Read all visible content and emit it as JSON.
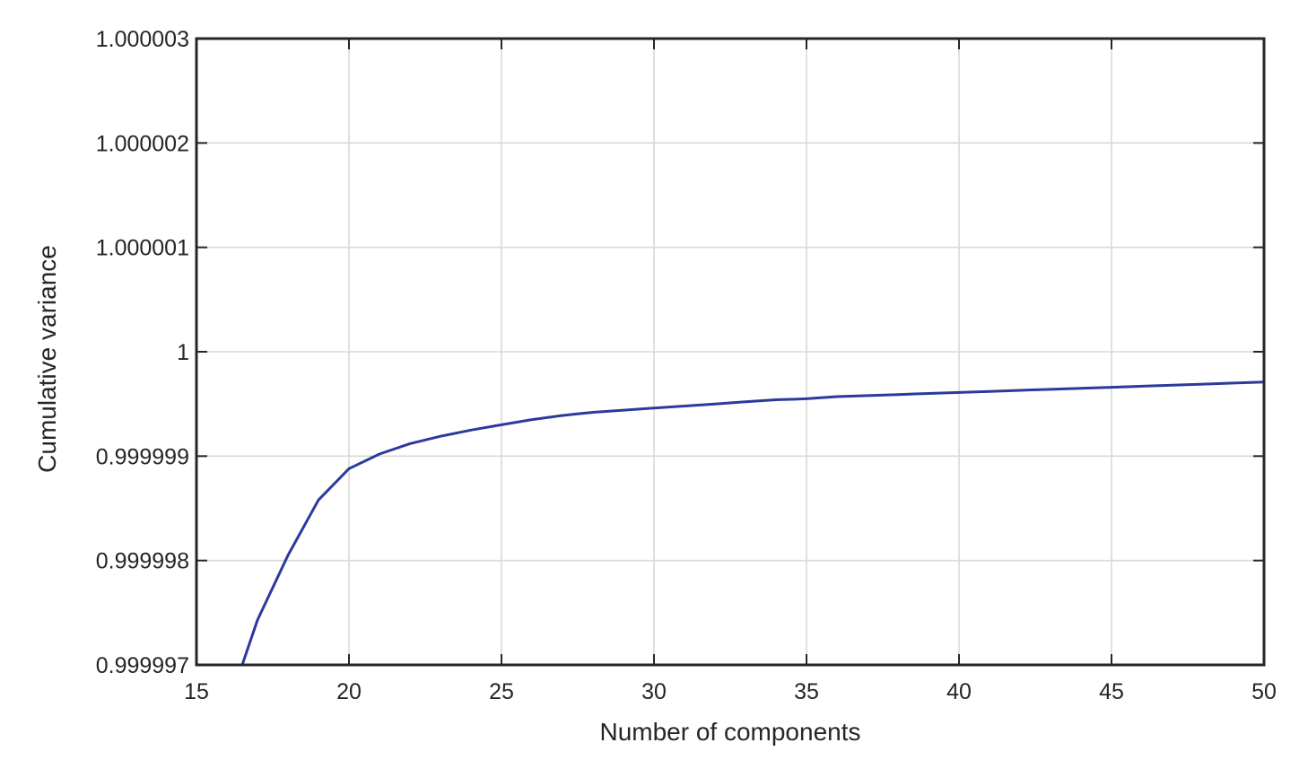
{
  "chart_data": {
    "type": "line",
    "title": "",
    "xlabel": "Number of components",
    "ylabel": "Cumulative variance",
    "xlim": [
      15,
      50
    ],
    "ylim": [
      0.999997,
      1.000003
    ],
    "xticks": [
      15,
      20,
      25,
      30,
      35,
      40,
      45,
      50
    ],
    "xtick_labels": [
      "15",
      "20",
      "25",
      "30",
      "35",
      "40",
      "45",
      "50"
    ],
    "yticks": [
      0.999997,
      0.999998,
      0.999999,
      1,
      1.000001,
      1.000002,
      1.000003
    ],
    "ytick_labels": [
      "0.999997",
      "0.999998",
      "0.999999",
      "1",
      "1.000001",
      "1.000002",
      "1.000003"
    ],
    "grid": true,
    "line_color": "#2b3a9c",
    "series": [
      {
        "x": [
          16.5,
          17,
          18,
          19,
          20,
          21,
          22,
          23,
          24,
          25,
          26,
          27,
          28,
          29,
          30,
          31,
          32,
          33,
          34,
          35,
          36,
          37,
          38,
          39,
          40,
          41,
          42,
          43,
          44,
          45,
          46,
          47,
          48,
          49,
          50
        ],
        "values": [
          0.999997,
          0.99999743,
          0.99999805,
          0.99999858,
          0.99999888,
          0.99999902,
          0.99999912,
          0.99999919,
          0.99999925,
          0.9999993,
          0.99999935,
          0.99999939,
          0.99999942,
          0.99999944,
          0.99999946,
          0.99999948,
          0.9999995,
          0.99999952,
          0.99999954,
          0.99999955,
          0.99999957,
          0.99999958,
          0.99999959,
          0.9999996,
          0.99999961,
          0.99999962,
          0.99999963,
          0.99999964,
          0.99999965,
          0.99999966,
          0.99999967,
          0.99999968,
          0.99999969,
          0.9999997,
          0.99999971
        ]
      }
    ]
  }
}
